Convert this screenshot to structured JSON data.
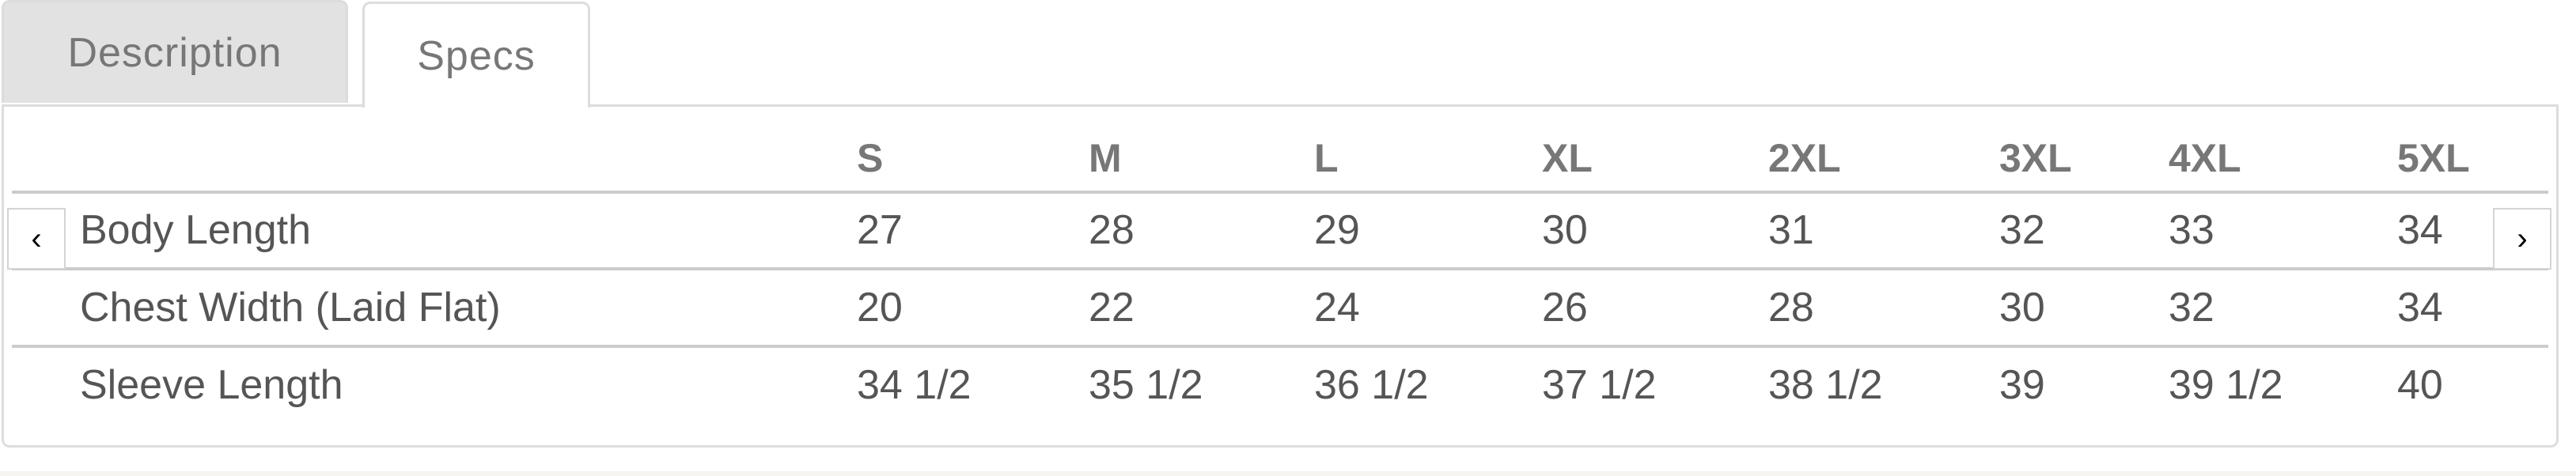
{
  "tabs": [
    {
      "label": "Description",
      "active": false
    },
    {
      "label": "Specs",
      "active": true
    }
  ],
  "specs": {
    "headers": [
      "",
      "S",
      "M",
      "L",
      "XL",
      "2XL",
      "3XL",
      "4XL",
      "5XL"
    ],
    "rows": [
      {
        "label": "Body Length",
        "values": [
          "27",
          "28",
          "29",
          "30",
          "31",
          "32",
          "33",
          "34"
        ]
      },
      {
        "label": "Chest Width (Laid Flat)",
        "values": [
          "20",
          "22",
          "24",
          "26",
          "28",
          "30",
          "32",
          "34"
        ]
      },
      {
        "label": "Sleeve Length",
        "values": [
          "34 1/2",
          "35 1/2",
          "36 1/2",
          "37 1/2",
          "38 1/2",
          "39",
          "39 1/2",
          "40"
        ]
      }
    ]
  },
  "scroll": {
    "prev_icon": "chevron-left-icon",
    "prev_glyph": "‹",
    "next_icon": "chevron-right-icon",
    "next_glyph": "›"
  }
}
